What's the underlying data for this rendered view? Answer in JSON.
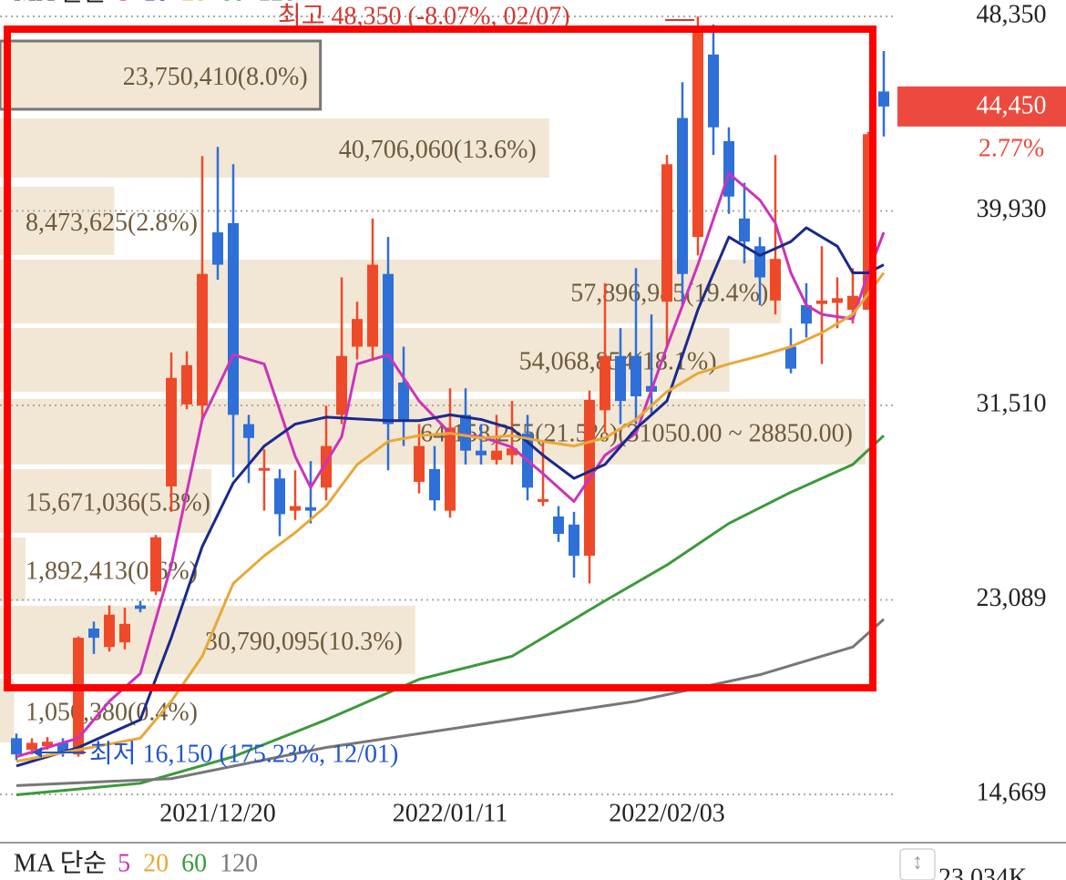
{
  "chart_data": {
    "type": "candlestick",
    "legend_title": "MA 단순",
    "high_annotation": "최고 48,350 (-8.07%, 02/07)",
    "low_annotation": "최저 16,150 (175.23%, 12/01)",
    "volume_axis_label": "23,034K",
    "categories": [
      null,
      null,
      null,
      null,
      null,
      null,
      null,
      null,
      null,
      null,
      null,
      null,
      null,
      "2021/12/20",
      null,
      null,
      null,
      null,
      null,
      null,
      null,
      null,
      null,
      null,
      null,
      null,
      null,
      null,
      "2022/01/11",
      null,
      null,
      null,
      null,
      null,
      null,
      null,
      null,
      null,
      null,
      null,
      null,
      null,
      "2022/02/03",
      null,
      null,
      null,
      null,
      null,
      null,
      null,
      null,
      null,
      null,
      null,
      null,
      null,
      null
    ],
    "open": [
      17100,
      16600,
      16750,
      16900,
      16400,
      21850,
      21050,
      21250,
      22850,
      23450,
      28000,
      31550,
      31500,
      39000,
      39400,
      30700,
      28700,
      28350,
      26950,
      27100,
      27950,
      31100,
      34050,
      34050,
      37200,
      32500,
      28200,
      28750,
      26950,
      31100,
      29550,
      29150,
      29350,
      30300,
      27350,
      26700,
      26350,
      25000,
      31300,
      33650,
      33650,
      32350,
      36000,
      43950,
      38800,
      46700,
      42950,
      39600,
      38400,
      36050,
      34050,
      35850,
      35900,
      35950,
      35650,
      35650,
      45100
    ],
    "high": [
      17300,
      17100,
      17150,
      17100,
      21500,
      22150,
      22850,
      22750,
      23050,
      25900,
      33800,
      33850,
      42300,
      42700,
      41950,
      31100,
      29600,
      28750,
      28700,
      29100,
      31500,
      37050,
      36000,
      39600,
      38800,
      34050,
      30700,
      29750,
      32250,
      32250,
      30700,
      31100,
      31700,
      31100,
      29950,
      27150,
      26900,
      32150,
      36800,
      34850,
      37450,
      35450,
      42350,
      45500,
      48350,
      48000,
      43550,
      41150,
      38800,
      42350,
      34850,
      36800,
      38400,
      37050,
      37450,
      43350,
      46850
    ],
    "low": [
      16150,
      16400,
      16600,
      16300,
      16300,
      20750,
      20850,
      20950,
      22550,
      23300,
      26900,
      31350,
      30900,
      36950,
      28400,
      28150,
      26950,
      25850,
      26550,
      26400,
      27400,
      30700,
      33500,
      33500,
      28700,
      29750,
      27700,
      26950,
      26650,
      28950,
      28950,
      28950,
      28950,
      27400,
      27150,
      25600,
      24050,
      23800,
      30300,
      30700,
      30700,
      31100,
      34050,
      35850,
      38000,
      42350,
      39800,
      37650,
      35850,
      35450,
      32900,
      34450,
      33300,
      34850,
      35050,
      35650,
      43150
    ],
    "close": [
      16400,
      16900,
      16950,
      16500,
      21450,
      21450,
      22450,
      22050,
      22700,
      25800,
      32700,
      33250,
      37200,
      37600,
      31100,
      30100,
      28800,
      26800,
      27150,
      26950,
      29750,
      33650,
      35250,
      37600,
      30700,
      30900,
      29750,
      27400,
      30550,
      29550,
      29350,
      29550,
      29650,
      27950,
      27450,
      25950,
      25000,
      31750,
      33650,
      31700,
      31900,
      32100,
      41950,
      37200,
      47850,
      43550,
      40550,
      38600,
      37050,
      37850,
      33100,
      35050,
      36050,
      36150,
      36250,
      43250,
      44450
    ],
    "up_color": "#ee4a2a",
    "down_color": "#2f6fd8",
    "ylim": [
      14354,
      49060
    ],
    "yticks": [
      {
        "value": 14669,
        "label": "14,669"
      },
      {
        "value": 23089,
        "label": "23,089"
      },
      {
        "value": 31510,
        "label": "31,510"
      },
      {
        "value": 39930,
        "label": "39,930"
      },
      {
        "value": 48350,
        "label": "48,350"
      }
    ],
    "grid": true,
    "last_price": {
      "value": 44450,
      "label": "44,450"
    },
    "change": {
      "value": 2.77,
      "label": "2.77%"
    },
    "ma_lines": [
      {
        "name": "5",
        "color": "#cc33bb",
        "bottom_legend": true,
        "x": [
          0,
          4,
          6,
          8,
          10,
          12,
          14,
          16,
          18,
          19,
          21,
          22,
          24,
          26,
          28,
          30,
          32,
          34,
          36,
          38,
          40,
          42,
          44,
          46,
          48,
          49,
          50,
          51,
          52,
          54,
          55,
          56
        ],
        "values": [
          16300,
          17100,
          18700,
          19900,
          24600,
          30900,
          33700,
          33300,
          29300,
          27950,
          30150,
          33300,
          33700,
          31700,
          30300,
          30150,
          29700,
          28550,
          27350,
          29350,
          30300,
          34050,
          37600,
          41550,
          40400,
          39400,
          37250,
          35850,
          35450,
          35250,
          37250,
          39000
        ]
      },
      {
        "name": "10",
        "color": "#1a2a8c",
        "bottom_legend": false,
        "x": [
          0,
          4,
          8,
          10,
          12,
          14,
          16,
          18,
          20,
          24,
          26,
          28,
          30,
          32,
          34,
          36,
          38,
          40,
          42,
          44,
          46,
          48,
          50,
          51,
          53,
          54,
          55,
          56
        ],
        "values": [
          15900,
          16700,
          17900,
          21450,
          25400,
          28150,
          29750,
          30700,
          31000,
          30850,
          30850,
          31100,
          30900,
          30500,
          29350,
          28350,
          28950,
          30500,
          31700,
          35650,
          38800,
          38000,
          38600,
          39200,
          38400,
          37250,
          37250,
          37600
        ]
      },
      {
        "name": "20",
        "color": "#e8a838",
        "bottom_legend": true,
        "x": [
          0,
          8,
          10,
          12,
          14,
          16,
          18,
          20,
          22,
          24,
          26,
          28,
          30,
          32,
          34,
          36,
          38,
          40,
          42,
          44,
          46,
          48,
          50,
          52,
          54,
          56
        ],
        "values": [
          16100,
          17100,
          18700,
          20650,
          23800,
          25000,
          26000,
          27150,
          28950,
          29950,
          30200,
          30300,
          30100,
          30200,
          29950,
          29750,
          30100,
          30900,
          32100,
          32900,
          33300,
          33650,
          34050,
          34650,
          35450,
          37250
        ]
      },
      {
        "name": "60",
        "color": "#3a9a3a",
        "bottom_legend": true,
        "x": [
          0,
          8,
          14,
          20,
          26,
          32,
          38,
          42,
          46,
          50,
          54,
          56
        ],
        "values": [
          14650,
          15150,
          16300,
          17900,
          19650,
          20650,
          23050,
          24600,
          26400,
          27750,
          28950,
          30200
        ]
      },
      {
        "name": "120",
        "color": "#777777",
        "bottom_legend": true,
        "x": [
          0,
          10,
          20,
          30,
          40,
          48,
          54,
          56
        ],
        "values": [
          15050,
          15350,
          16700,
          17700,
          18700,
          19850,
          21050,
          22250
        ]
      }
    ],
    "volume_profile": [
      {
        "label": "23,750,410(8.0%)",
        "value": 23750410,
        "range": [
          44330,
          47285
        ],
        "outlined": true
      },
      {
        "label": "40,706,060(13.6%)",
        "value": 40706060,
        "range": [
          41370,
          43930
        ]
      },
      {
        "label": "8,473,625(2.8%)",
        "value": 8473625,
        "range": [
          38020,
          40980
        ]
      },
      {
        "label": "57,896,985(19.4%)",
        "value": 57896985,
        "range": [
          35060,
          37820
        ]
      },
      {
        "label": "54,068,854(18.1%)",
        "value": 54068854,
        "range": [
          32100,
          34860
        ]
      },
      {
        "label": "64,158,255(21.5%)(31050.00 ~ 28850.00)",
        "value": 64158255,
        "range": [
          28950,
          31790
        ]
      },
      {
        "label": "15,671,036(5.3%)",
        "value": 15671036,
        "range": [
          25990,
          28750
        ]
      },
      {
        "label": "1,892,413(0.6%)",
        "value": 1892413,
        "range": [
          23030,
          25790
        ]
      },
      {
        "label": "30,790,095(10.3%)",
        "value": 30790095,
        "range": [
          19870,
          22830
        ]
      },
      {
        "label": "1,050,380(0.4%)",
        "value": 1050380,
        "range": [
          16920,
          19680
        ]
      }
    ]
  }
}
